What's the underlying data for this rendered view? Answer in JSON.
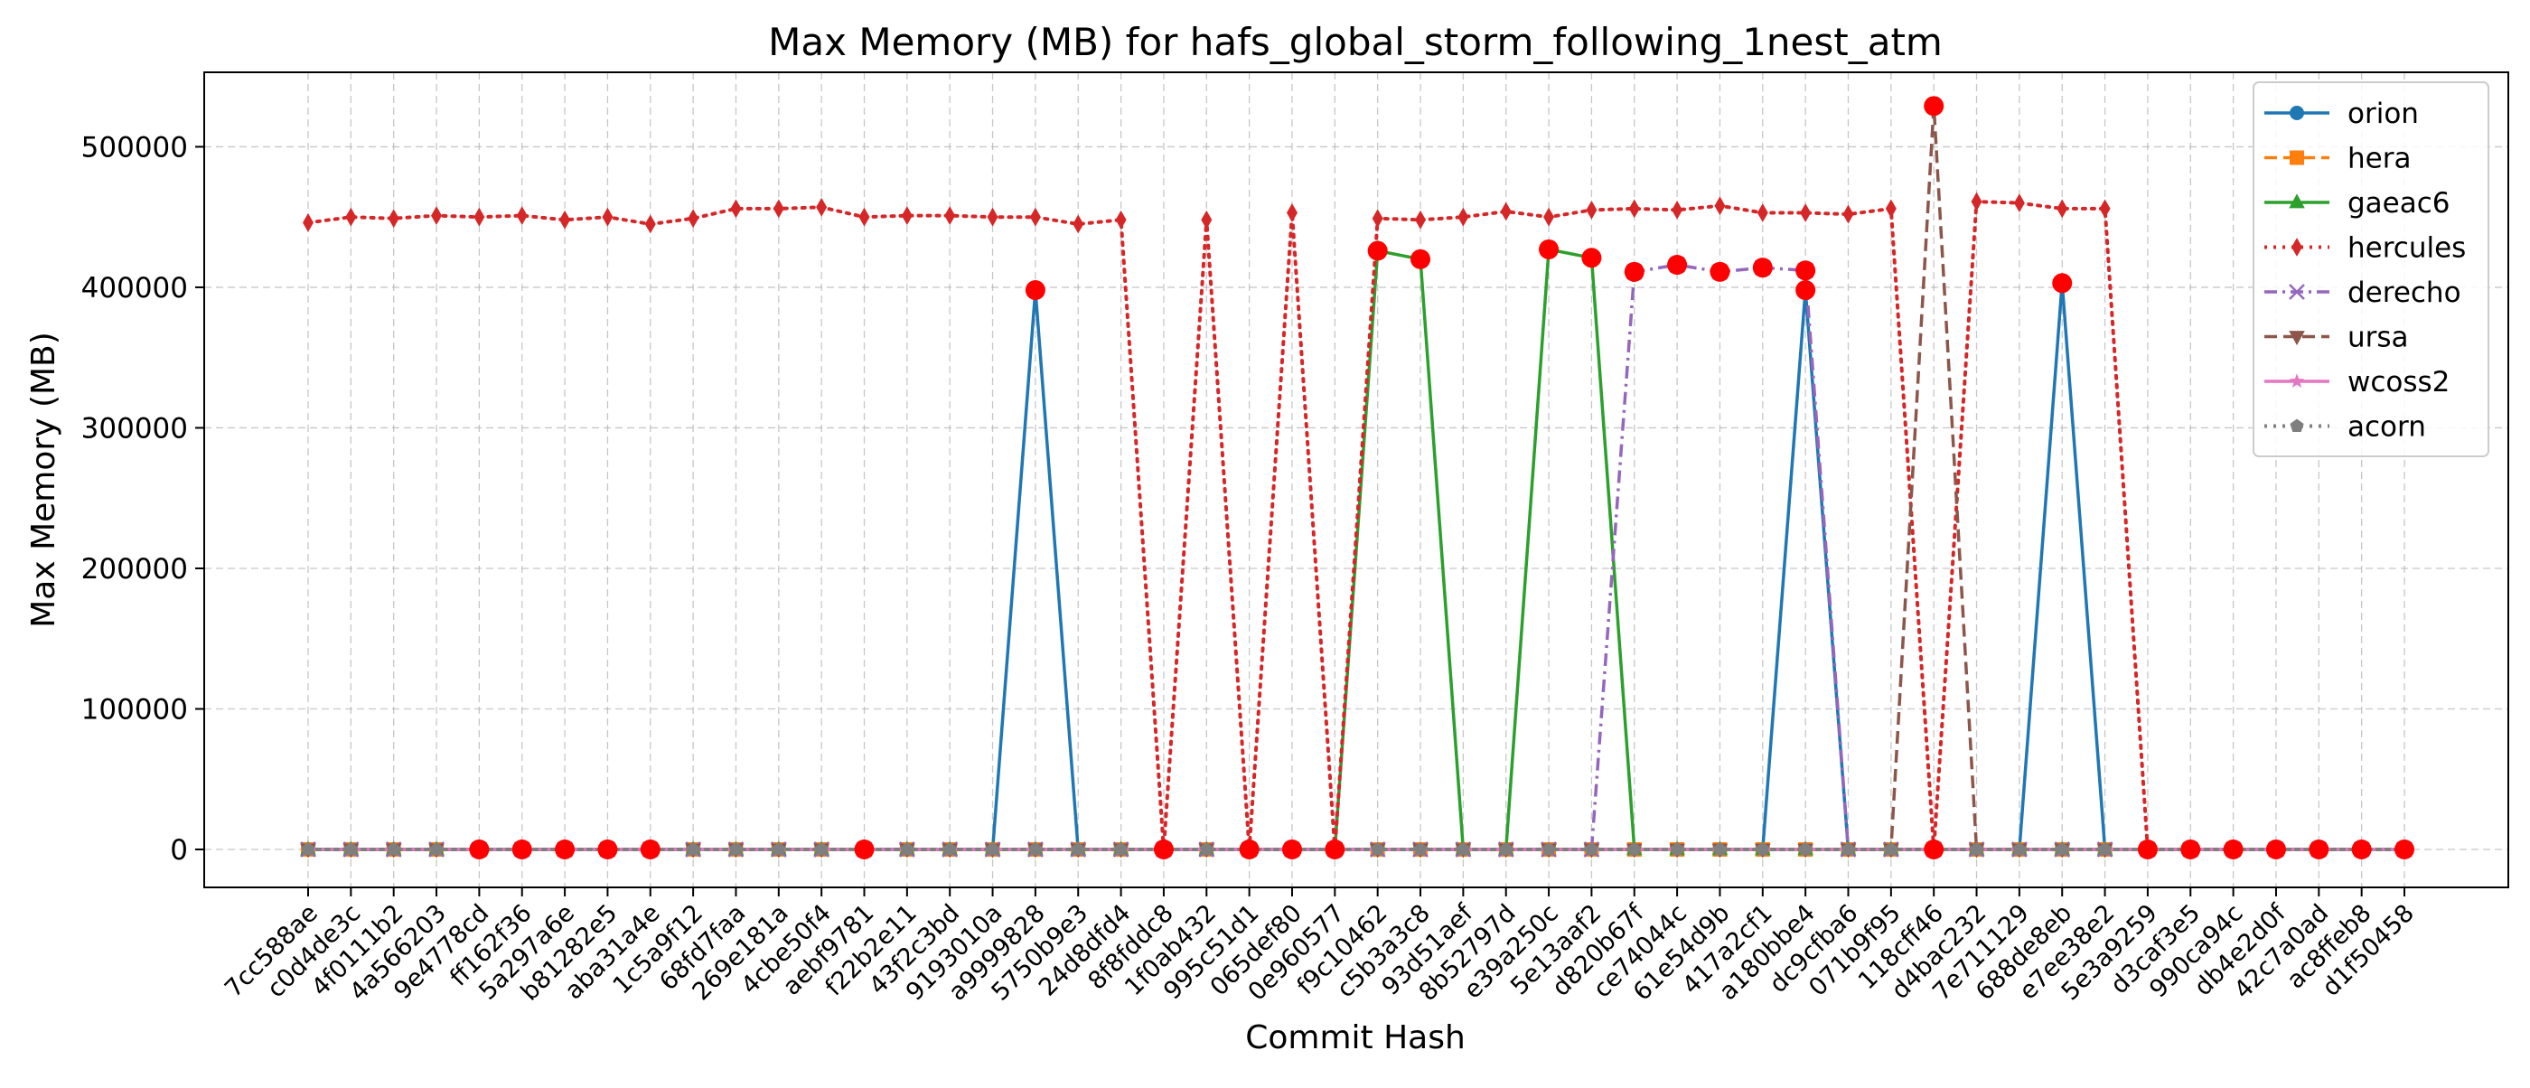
{
  "chart_data": {
    "type": "line",
    "title": "Max Memory (MB) for hafs_global_storm_following_1nest_atm",
    "xlabel": "Commit Hash",
    "ylabel": "Max Memory (MB)",
    "ylim": [
      -27000,
      553000
    ],
    "yticks": [
      0,
      100000,
      200000,
      300000,
      400000,
      500000
    ],
    "ytick_labels": [
      "0",
      "100000",
      "200000",
      "300000",
      "400000",
      "500000"
    ],
    "grid": true,
    "legend_position": "top-right",
    "categories": [
      "7cc588ae",
      "c0d4de3c",
      "4f0111b2",
      "4a566203",
      "9e4778cd",
      "ff162f36",
      "5a297a6e",
      "b81282e5",
      "aba31a4e",
      "1c5a9f12",
      "68fd7faa",
      "269e181a",
      "4cbe50f4",
      "aebf9781",
      "f22b2e11",
      "43f2c3bd",
      "9193010a",
      "a9999828",
      "5750b9e3",
      "24d8dfd4",
      "8f8fddc8",
      "1f0ab432",
      "995c51d1",
      "065def80",
      "0e960577",
      "f9c10462",
      "c5b3a3c8",
      "93d51aef",
      "8b52797d",
      "e39a250c",
      "5e13aaf2",
      "d820b67f",
      "ce74044c",
      "61e54d9b",
      "417a2cf1",
      "a180bbe4",
      "dc9cfba6",
      "071b9f95",
      "118cff46",
      "d4bac232",
      "7e711129",
      "688de8eb",
      "e7ee38e2",
      "5e3a9259",
      "d3caf3e5",
      "990ca94c",
      "db4e2d0f",
      "42c7a0ad",
      "ac8ffeb8",
      "d1f50458"
    ],
    "series": [
      {
        "name": "orion",
        "color": "#1f77b4",
        "dash": "solid",
        "marker": "circle",
        "values": [
          0,
          0,
          0,
          0,
          0,
          0,
          0,
          0,
          0,
          0,
          0,
          0,
          0,
          0,
          0,
          0,
          0,
          398000,
          0,
          0,
          0,
          0,
          0,
          0,
          0,
          0,
          0,
          0,
          0,
          0,
          0,
          0,
          0,
          0,
          0,
          398000,
          0,
          0,
          0,
          0,
          0,
          403000,
          0,
          0,
          0,
          0,
          0,
          0,
          0,
          0
        ]
      },
      {
        "name": "hera",
        "color": "#ff7f0e",
        "dash": "dashed",
        "marker": "square",
        "values": [
          0,
          0,
          0,
          0,
          0,
          0,
          0,
          0,
          0,
          0,
          0,
          0,
          0,
          0,
          0,
          0,
          0,
          0,
          0,
          0,
          0,
          0,
          0,
          0,
          0,
          0,
          0,
          0,
          0,
          0,
          0,
          0,
          0,
          0,
          0,
          0,
          0,
          0,
          0,
          0,
          0,
          0,
          0,
          0,
          0,
          0,
          0,
          0,
          0,
          0
        ]
      },
      {
        "name": "gaeac6",
        "color": "#2ca02c",
        "dash": "solid",
        "marker": "triangle-up",
        "values": [
          0,
          0,
          0,
          0,
          0,
          0,
          0,
          0,
          0,
          0,
          0,
          0,
          0,
          0,
          0,
          0,
          0,
          0,
          0,
          0,
          0,
          0,
          0,
          0,
          0,
          426000,
          420000,
          0,
          0,
          427000,
          421000,
          0,
          0,
          0,
          0,
          0,
          0,
          0,
          0,
          0,
          0,
          0,
          0,
          0,
          0,
          0,
          0,
          0,
          0,
          0
        ]
      },
      {
        "name": "hercules",
        "color": "#d62728",
        "dash": "dotted",
        "marker": "diamond",
        "values": [
          446000,
          450000,
          449000,
          451000,
          450000,
          451000,
          448000,
          450000,
          445000,
          449000,
          456000,
          456000,
          457000,
          450000,
          451000,
          451000,
          450000,
          450000,
          445000,
          448000,
          0,
          448000,
          0,
          453000,
          0,
          449000,
          448000,
          450000,
          454000,
          450000,
          455000,
          456000,
          455000,
          458000,
          453000,
          453000,
          452000,
          456000,
          0,
          461000,
          460000,
          456000,
          456000,
          0,
          0,
          0,
          0,
          0,
          0,
          0
        ]
      },
      {
        "name": "derecho",
        "color": "#9467bd",
        "dash": "dashdot",
        "marker": "x",
        "values": [
          0,
          0,
          0,
          0,
          0,
          0,
          0,
          0,
          0,
          0,
          0,
          0,
          0,
          0,
          0,
          0,
          0,
          0,
          0,
          0,
          0,
          0,
          0,
          0,
          0,
          0,
          0,
          0,
          0,
          0,
          0,
          411000,
          416000,
          411000,
          414000,
          412000,
          0,
          0,
          0,
          0,
          0,
          0,
          0,
          0,
          0,
          0,
          0,
          0,
          0,
          0
        ]
      },
      {
        "name": "ursa",
        "color": "#8c564b",
        "dash": "dashed",
        "marker": "triangle-down",
        "values": [
          0,
          0,
          0,
          0,
          0,
          0,
          0,
          0,
          0,
          0,
          0,
          0,
          0,
          0,
          0,
          0,
          0,
          0,
          0,
          0,
          0,
          0,
          0,
          0,
          0,
          0,
          0,
          0,
          0,
          0,
          0,
          0,
          0,
          0,
          0,
          0,
          0,
          0,
          529000,
          0,
          0,
          0,
          0,
          0,
          0,
          0,
          0,
          0,
          0,
          0
        ]
      },
      {
        "name": "wcoss2",
        "color": "#e377c2",
        "dash": "solid",
        "marker": "star",
        "values": [
          0,
          0,
          0,
          0,
          0,
          0,
          0,
          0,
          0,
          0,
          0,
          0,
          0,
          0,
          0,
          0,
          0,
          0,
          0,
          0,
          0,
          0,
          0,
          0,
          0,
          0,
          0,
          0,
          0,
          0,
          0,
          0,
          0,
          0,
          0,
          0,
          0,
          0,
          0,
          0,
          0,
          0,
          0,
          0,
          0,
          0,
          0,
          0,
          0,
          0
        ]
      },
      {
        "name": "acorn",
        "color": "#7f7f7f",
        "dash": "dotted",
        "marker": "pentagon",
        "values": [
          0,
          0,
          0,
          0,
          0,
          0,
          0,
          0,
          0,
          0,
          0,
          0,
          0,
          0,
          0,
          0,
          0,
          0,
          0,
          0,
          0,
          0,
          0,
          0,
          0,
          0,
          0,
          0,
          0,
          0,
          0,
          0,
          0,
          0,
          0,
          0,
          0,
          0,
          0,
          0,
          0,
          0,
          0,
          0,
          0,
          0,
          0,
          0,
          0,
          0
        ]
      }
    ],
    "highlighted_points": [
      {
        "category": "9e4778cd",
        "value": 0
      },
      {
        "category": "ff162f36",
        "value": 0
      },
      {
        "category": "5a297a6e",
        "value": 0
      },
      {
        "category": "b81282e5",
        "value": 0
      },
      {
        "category": "aba31a4e",
        "value": 0
      },
      {
        "category": "aebf9781",
        "value": 0
      },
      {
        "category": "a9999828",
        "value": 398000
      },
      {
        "category": "8f8fddc8",
        "value": 0
      },
      {
        "category": "995c51d1",
        "value": 0
      },
      {
        "category": "065def80",
        "value": 0
      },
      {
        "category": "0e960577",
        "value": 0
      },
      {
        "category": "f9c10462",
        "value": 426000
      },
      {
        "category": "c5b3a3c8",
        "value": 420000
      },
      {
        "category": "e39a250c",
        "value": 427000
      },
      {
        "category": "5e13aaf2",
        "value": 421000
      },
      {
        "category": "d820b67f",
        "value": 411000
      },
      {
        "category": "ce74044c",
        "value": 416000
      },
      {
        "category": "61e54d9b",
        "value": 411000
      },
      {
        "category": "417a2cf1",
        "value": 414000
      },
      {
        "category": "a180bbe4",
        "value": 412000
      },
      {
        "category": "a180bbe4",
        "value": 398000
      },
      {
        "category": "118cff46",
        "value": 529000
      },
      {
        "category": "118cff46",
        "value": 0
      },
      {
        "category": "688de8eb",
        "value": 403000
      },
      {
        "category": "5e3a9259",
        "value": 0
      },
      {
        "category": "d3caf3e5",
        "value": 0
      },
      {
        "category": "990ca94c",
        "value": 0
      },
      {
        "category": "db4e2d0f",
        "value": 0
      },
      {
        "category": "42c7a0ad",
        "value": 0
      },
      {
        "category": "ac8ffeb8",
        "value": 0
      },
      {
        "category": "d1f50458",
        "value": 0
      }
    ],
    "highlight_color": "#ff0000"
  }
}
